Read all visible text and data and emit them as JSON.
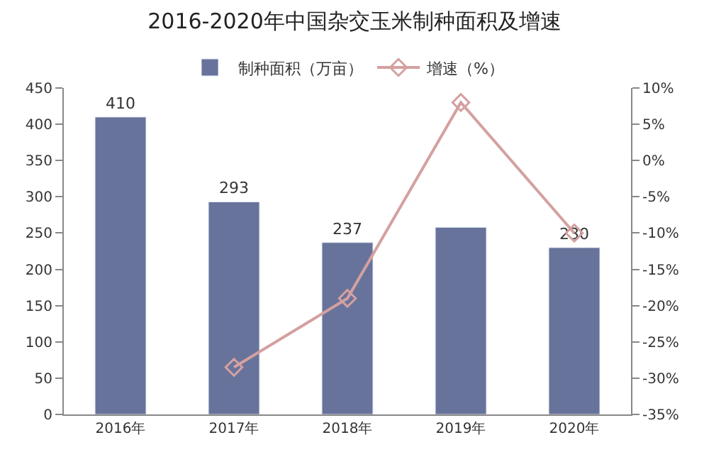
{
  "chart_data": {
    "type": "bar",
    "title": "2016-2020年中国杂交玉米制种面积及增速",
    "categories": [
      "2016年",
      "2017年",
      "2018年",
      "2019年",
      "2020年"
    ],
    "series": [
      {
        "name": "制种面积（万亩）",
        "color": "#68739b",
        "values": [
          410,
          293,
          237,
          258,
          230
        ],
        "value_labels": [
          "410",
          "293",
          "237",
          null,
          "230"
        ]
      },
      {
        "name": "增速（%）",
        "type": "line",
        "axis": "y2",
        "color": "#d4a0a0",
        "marker": "diamond",
        "values": [
          null,
          -28.5,
          -19,
          8,
          -10
        ]
      }
    ],
    "ylim": [
      0,
      450
    ],
    "yticks": [
      0,
      50,
      100,
      150,
      200,
      250,
      300,
      350,
      400,
      450
    ],
    "y2lim": [
      -35,
      10
    ],
    "y2ticks": [
      {
        "value": -35,
        "label": "-35%"
      },
      {
        "value": -30,
        "label": "-30%"
      },
      {
        "value": -25,
        "label": "-25%"
      },
      {
        "value": -20,
        "label": "-20%"
      },
      {
        "value": -15,
        "label": "-15%"
      },
      {
        "value": -10,
        "label": "-10%"
      },
      {
        "value": -5,
        "label": "-5%"
      },
      {
        "value": 0,
        "label": "0%"
      },
      {
        "value": 5,
        "label": "5%"
      },
      {
        "value": 10,
        "label": "10%"
      }
    ],
    "legend": "top"
  }
}
